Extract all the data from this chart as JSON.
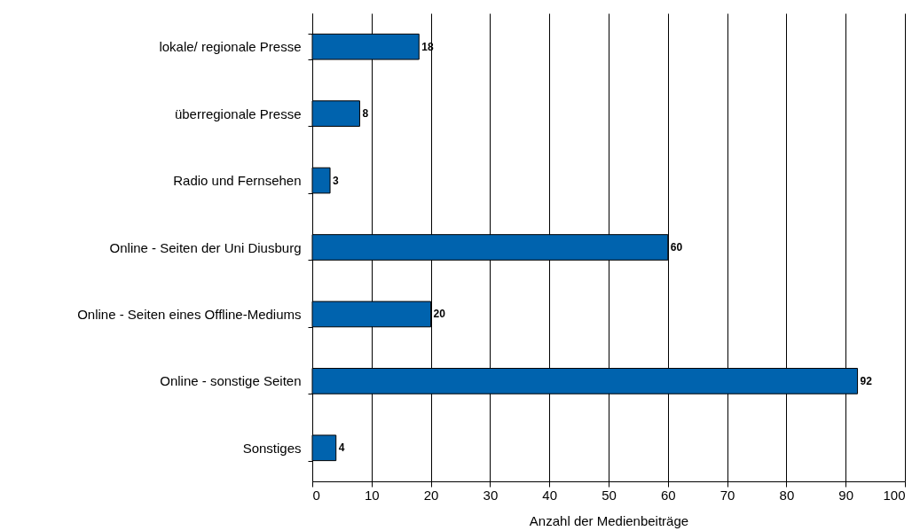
{
  "chart_data": {
    "type": "bar",
    "orientation": "horizontal",
    "xlabel": "Anzahl der Medienbeiträge",
    "categories": [
      "lokale/ regionale Presse",
      "überregionale Presse",
      "Radio und Fernsehen",
      "Online - Seiten der Uni Diusburg",
      "Online - Seiten eines Offline-Mediums",
      "Online - sonstige Seiten",
      "Sonstiges"
    ],
    "values": [
      18,
      8,
      3,
      60,
      20,
      92,
      4
    ],
    "color": "#0063ae",
    "xlim": [
      0,
      100
    ],
    "xticks": [
      0,
      10,
      20,
      30,
      40,
      50,
      60,
      70,
      80,
      90,
      100
    ],
    "grid": "x",
    "data_labels": true
  }
}
